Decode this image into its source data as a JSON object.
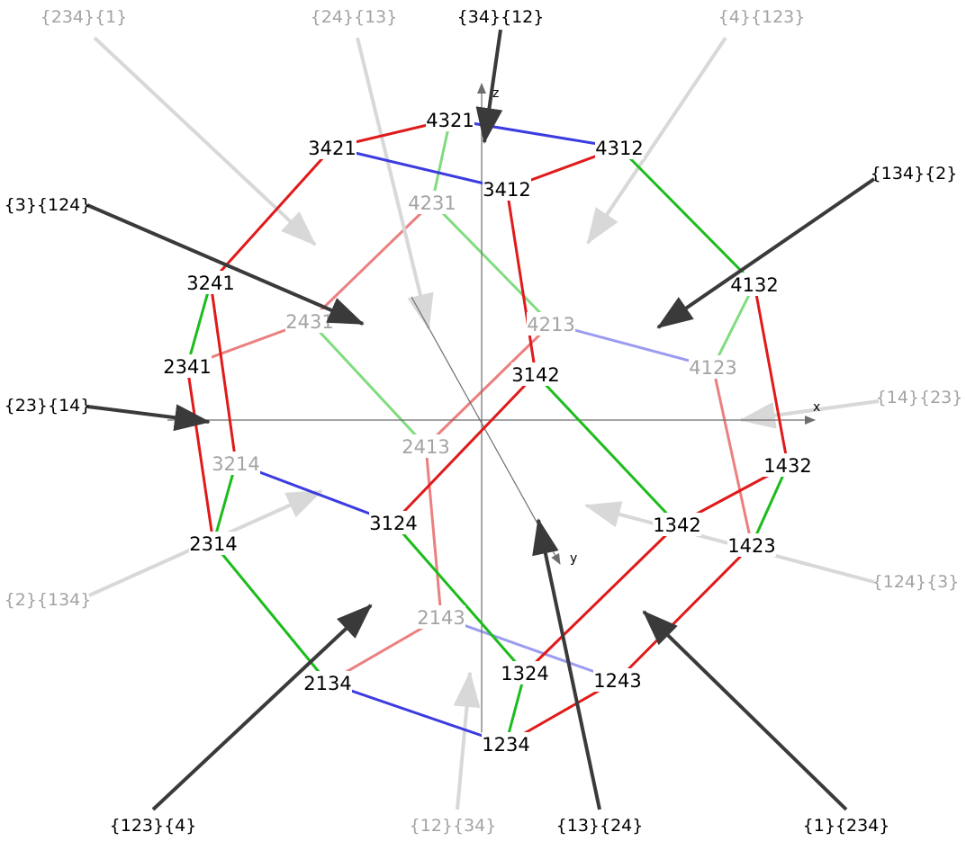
{
  "colors": {
    "red": "#e01a1a",
    "green": "#1cbc1c",
    "blue": "#3b3be0",
    "back_red": "#ec7f7f",
    "back_green": "#80dc80",
    "back_blue": "#9b9bf0",
    "axis": "#6e6e6e",
    "front_text": "#000000",
    "back_text": "#a3a3a3",
    "front_arrow": "#3a3a3a",
    "back_arrow": "#d8d8d8",
    "front_face_label": "#000000",
    "back_face_label": "#a3a3a3"
  },
  "axes": {
    "x": "x",
    "y": "y",
    "z": "z"
  },
  "vertices": [
    {
      "id": "4321",
      "label": "4321",
      "front": true
    },
    {
      "id": "4312",
      "label": "4312",
      "front": true
    },
    {
      "id": "3421",
      "label": "3421",
      "front": true
    },
    {
      "id": "3412",
      "label": "3412",
      "front": true
    },
    {
      "id": "4231",
      "label": "4231",
      "front": false
    },
    {
      "id": "3241",
      "label": "3241",
      "front": true
    },
    {
      "id": "4132",
      "label": "4132",
      "front": true
    },
    {
      "id": "2431",
      "label": "2431",
      "front": false
    },
    {
      "id": "4213",
      "label": "4213",
      "front": false
    },
    {
      "id": "2341",
      "label": "2341",
      "front": true
    },
    {
      "id": "4123",
      "label": "4123",
      "front": false
    },
    {
      "id": "3142",
      "label": "3142",
      "front": true
    },
    {
      "id": "2413",
      "label": "2413",
      "front": false
    },
    {
      "id": "3214",
      "label": "3214",
      "front": false
    },
    {
      "id": "1432",
      "label": "1432",
      "front": true
    },
    {
      "id": "3124",
      "label": "3124",
      "front": true
    },
    {
      "id": "1342",
      "label": "1342",
      "front": true
    },
    {
      "id": "2314",
      "label": "2314",
      "front": true
    },
    {
      "id": "1423",
      "label": "1423",
      "front": true
    },
    {
      "id": "2143",
      "label": "2143",
      "front": false
    },
    {
      "id": "1324",
      "label": "1324",
      "front": true
    },
    {
      "id": "1243",
      "label": "1243",
      "front": true
    },
    {
      "id": "2134",
      "label": "2134",
      "front": true
    },
    {
      "id": "1234",
      "label": "1234",
      "front": true
    }
  ],
  "edges": [
    {
      "from": "4321",
      "to": "4312",
      "color": "blue",
      "front": true
    },
    {
      "from": "3421",
      "to": "3412",
      "color": "blue",
      "front": true
    },
    {
      "from": "4321",
      "to": "3421",
      "color": "red",
      "front": true
    },
    {
      "from": "4312",
      "to": "3412",
      "color": "red",
      "front": true
    },
    {
      "from": "3421",
      "to": "3241",
      "color": "red",
      "front": true
    },
    {
      "from": "4312",
      "to": "4132",
      "color": "green",
      "front": true
    },
    {
      "from": "3412",
      "to": "3142",
      "color": "red",
      "front": true
    },
    {
      "from": "3241",
      "to": "2341",
      "color": "green",
      "front": true
    },
    {
      "from": "3241",
      "to": "3214",
      "color": "red",
      "front": true
    },
    {
      "from": "2341",
      "to": "2314",
      "color": "red",
      "front": true
    },
    {
      "from": "3214",
      "to": "2314",
      "color": "green",
      "front": true
    },
    {
      "from": "3214",
      "to": "3124",
      "color": "blue",
      "front": true
    },
    {
      "from": "3142",
      "to": "3124",
      "color": "red",
      "front": true
    },
    {
      "from": "3142",
      "to": "1342",
      "color": "green",
      "front": true
    },
    {
      "from": "4132",
      "to": "1432",
      "color": "red",
      "front": true
    },
    {
      "from": "1432",
      "to": "1342",
      "color": "red",
      "front": true
    },
    {
      "from": "1432",
      "to": "1423",
      "color": "green",
      "front": true
    },
    {
      "from": "1342",
      "to": "1324",
      "color": "red",
      "front": true
    },
    {
      "from": "1423",
      "to": "1243",
      "color": "red",
      "front": true
    },
    {
      "from": "3124",
      "to": "1324",
      "color": "green",
      "front": true
    },
    {
      "from": "2314",
      "to": "2134",
      "color": "green",
      "front": true
    },
    {
      "from": "2134",
      "to": "1234",
      "color": "blue",
      "front": true
    },
    {
      "from": "1324",
      "to": "1234",
      "color": "green",
      "front": true
    },
    {
      "from": "1243",
      "to": "1234",
      "color": "red",
      "front": true
    },
    {
      "from": "4321",
      "to": "4231",
      "color": "green",
      "front": false
    },
    {
      "from": "4231",
      "to": "2431",
      "color": "red",
      "front": false
    },
    {
      "from": "4231",
      "to": "4213",
      "color": "green",
      "front": false
    },
    {
      "from": "2431",
      "to": "2341",
      "color": "red",
      "front": false
    },
    {
      "from": "2431",
      "to": "2413",
      "color": "green",
      "front": false
    },
    {
      "from": "4213",
      "to": "4123",
      "color": "blue",
      "front": false
    },
    {
      "from": "4213",
      "to": "2413",
      "color": "red",
      "front": false
    },
    {
      "from": "4132",
      "to": "4123",
      "color": "green",
      "front": false
    },
    {
      "from": "4123",
      "to": "1423",
      "color": "red",
      "front": false
    },
    {
      "from": "2413",
      "to": "2143",
      "color": "red",
      "front": false
    },
    {
      "from": "2143",
      "to": "2134",
      "color": "red",
      "front": false
    },
    {
      "from": "2143",
      "to": "1243",
      "color": "blue",
      "front": false
    }
  ],
  "face_labels": [
    {
      "label": "{34}{12}",
      "front": true
    },
    {
      "label": "{3}{124}",
      "front": true
    },
    {
      "label": "{134}{2}",
      "front": true
    },
    {
      "label": "{23}{14}",
      "front": true
    },
    {
      "label": "{123}{4}",
      "front": true
    },
    {
      "label": "{13}{24}",
      "front": true
    },
    {
      "label": "{1}{234}",
      "front": true
    },
    {
      "label": "{234}{1}",
      "front": false
    },
    {
      "label": "{24}{13}",
      "front": false
    },
    {
      "label": "{4}{123}",
      "front": false
    },
    {
      "label": "{14}{23}",
      "front": false
    },
    {
      "label": "{2}{134}",
      "front": false
    },
    {
      "label": "{124}{3}",
      "front": false
    },
    {
      "label": "{12}{34}",
      "front": false
    }
  ]
}
